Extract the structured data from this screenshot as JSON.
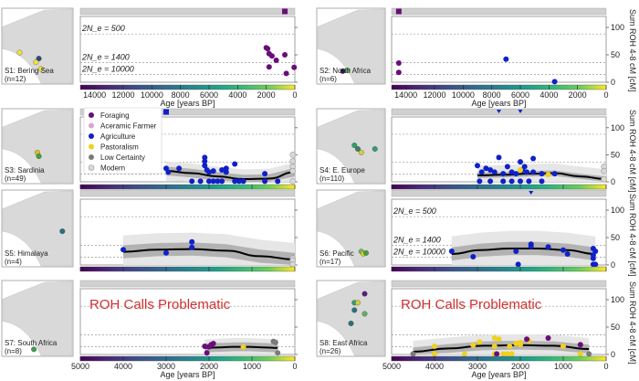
{
  "chart_data": {
    "type": "scatter",
    "shared": {
      "ylabel": "Sum ROH 4-8 cM [cM]",
      "ylim": [
        0,
        120
      ],
      "yticks": [
        0,
        50,
        100
      ],
      "colorbar_label": "Age [years BP]",
      "legend": [
        {
          "label": "Foraging",
          "color": "#6a0d7a"
        },
        {
          "label": "Aceramic Farmer",
          "color": "#d9a3d9"
        },
        {
          "label": "Agriculture",
          "color": "#1020c8"
        },
        {
          "label": "Pastoralism",
          "color": "#f0d020"
        },
        {
          "label": "Low Certainty",
          "color": "#7a7a7a"
        },
        {
          "label": "Modern",
          "color": "#d8d8d8"
        }
      ],
      "ne_lines": [
        {
          "label": "2N_e = 500",
          "y": 88
        },
        {
          "label": "2N_e = 1400",
          "y": 36
        },
        {
          "label": "2N_e = 10000",
          "y": 14
        }
      ],
      "problematic_text": "ROH Calls Problematic"
    },
    "panels": [
      {
        "id": "S1",
        "title": "S1: Bering Sea",
        "n": "(n=12)",
        "xlim": [
          15000,
          0
        ],
        "xticks": [
          14000,
          12000,
          10000,
          8000,
          6000,
          4000,
          2000,
          0
        ],
        "show_ne_labels": true,
        "show_xlabels": true,
        "points": [
          [
            2000,
            63,
            "Foraging"
          ],
          [
            1900,
            61,
            "Foraging"
          ],
          [
            1800,
            52,
            "Foraging"
          ],
          [
            1600,
            48,
            "Foraging"
          ],
          [
            1300,
            40,
            "Foraging"
          ],
          [
            700,
            50,
            "Foraging"
          ],
          [
            1800,
            28,
            "Foraging"
          ],
          [
            600,
            16,
            "Foraging"
          ],
          [
            50,
            27,
            "Foraging"
          ]
        ],
        "top_markers": [
          [
            700,
            "square",
            "#6a0d7a"
          ]
        ],
        "above_markers": [
          [
            11500,
            "triangle-up",
            "#6a0d7a"
          ]
        ],
        "map_points": [
          [
            "#f0e040",
            0.25,
            0.6
          ],
          [
            "#2a4a80",
            0.52,
            0.68
          ],
          [
            "#f0e040",
            0.48,
            0.73
          ],
          [
            "#f0e040",
            0.55,
            0.82
          ]
        ]
      },
      {
        "id": "S2",
        "title": "S2: North Africa",
        "n": "(n=6)",
        "xlim": [
          15000,
          0
        ],
        "xticks": [
          14000,
          12000,
          10000,
          8000,
          6000,
          4000,
          2000,
          0
        ],
        "show_ne_labels": false,
        "show_xlabels": true,
        "points": [
          [
            14500,
            35,
            "Foraging"
          ],
          [
            14500,
            18,
            "Foraging"
          ],
          [
            7000,
            42,
            "Agriculture"
          ],
          [
            3600,
            1,
            "Agriculture"
          ]
        ],
        "top_markers": [
          [
            14500,
            "square",
            "#6a0d7a"
          ]
        ],
        "above_markers": [],
        "map_points": [
          [
            "#3a1060",
            0.38,
            0.85
          ],
          [
            "#60c060",
            0.45,
            0.84
          ]
        ]
      },
      {
        "id": "S3",
        "title": "S3: Sardinia",
        "n": "(n=49)",
        "xlim": [
          5000,
          0
        ],
        "xticks": [
          5000,
          4000,
          3000,
          2000,
          1000,
          0
        ],
        "show_ne_labels": false,
        "show_xlabels": false,
        "show_legend": true,
        "fit": {
          "start": 3000,
          "end": 0,
          "values": [
            20,
            16,
            10,
            5,
            6,
            18
          ],
          "band_inner": 8,
          "band_outer": 18
        },
        "points": [
          [
            3000,
            25,
            "Agriculture"
          ],
          [
            2950,
            18,
            "Agriculture"
          ],
          [
            2700,
            25,
            "Agriculture"
          ],
          [
            2100,
            45,
            "Agriculture"
          ],
          [
            2100,
            38,
            "Agriculture"
          ],
          [
            2100,
            30,
            "Agriculture"
          ],
          [
            2050,
            22,
            "Agriculture"
          ],
          [
            2000,
            18,
            "Agriculture"
          ],
          [
            1900,
            20,
            "Agriculture"
          ],
          [
            1700,
            22,
            "Agriculture"
          ],
          [
            1600,
            18,
            "Agriculture"
          ],
          [
            1600,
            25,
            "Agriculture"
          ],
          [
            1400,
            33,
            "Agriculture"
          ],
          [
            2400,
            1,
            "Agriculture"
          ],
          [
            2200,
            1,
            "Agriculture"
          ],
          [
            2000,
            1,
            "Agriculture"
          ],
          [
            1900,
            1,
            "Agriculture"
          ],
          [
            1800,
            1,
            "Agriculture"
          ],
          [
            1700,
            1,
            "Agriculture"
          ],
          [
            1400,
            1,
            "Agriculture"
          ],
          [
            1300,
            1,
            "Agriculture"
          ],
          [
            1200,
            1,
            "Agriculture"
          ],
          [
            700,
            15,
            "Agriculture"
          ],
          [
            700,
            1,
            "Agriculture"
          ],
          [
            400,
            1,
            "Agriculture"
          ],
          [
            50,
            50,
            "Modern"
          ],
          [
            50,
            38,
            "Modern"
          ],
          [
            50,
            28,
            "Modern"
          ],
          [
            50,
            20,
            "Modern"
          ],
          [
            50,
            1,
            "Modern"
          ]
        ],
        "top_markers": [
          [
            3000,
            "square",
            "#1020c8"
          ]
        ],
        "above_markers": [],
        "map_points": [
          [
            "#e0c020",
            0.5,
            0.6
          ],
          [
            "#40a040",
            0.52,
            0.65
          ]
        ]
      },
      {
        "id": "S4",
        "title": "S4: E. Europe",
        "n": "(n=110)",
        "xlim": [
          5000,
          0
        ],
        "xticks": [
          5000,
          4000,
          3000,
          2000,
          1000,
          0
        ],
        "show_ne_labels": false,
        "show_xlabels": false,
        "fit": {
          "start": 3000,
          "end": 0,
          "values": [
            12,
            13,
            15,
            16,
            10,
            5
          ],
          "band_inner": 5,
          "band_outer": 18
        },
        "points": [
          [
            3000,
            30,
            "Agriculture"
          ],
          [
            2900,
            18,
            "Agriculture"
          ],
          [
            2800,
            25,
            "Agriculture"
          ],
          [
            2700,
            22,
            "Agriculture"
          ],
          [
            2600,
            18,
            "Agriculture"
          ],
          [
            2500,
            45,
            "Agriculture"
          ],
          [
            2400,
            15,
            "Agriculture"
          ],
          [
            2300,
            28,
            "Agriculture"
          ],
          [
            2200,
            18,
            "Agriculture"
          ],
          [
            2100,
            15,
            "Agriculture"
          ],
          [
            2000,
            37,
            "Agriculture"
          ],
          [
            1900,
            28,
            "Agriculture"
          ],
          [
            1950,
            22,
            "Agriculture"
          ],
          [
            1850,
            18,
            "Agriculture"
          ],
          [
            1700,
            43,
            "Agriculture"
          ],
          [
            1700,
            18,
            "Agriculture"
          ],
          [
            1500,
            15,
            "Agriculture"
          ],
          [
            1200,
            15,
            "Agriculture"
          ],
          [
            2950,
            1,
            "Agriculture"
          ],
          [
            2700,
            1,
            "Agriculture"
          ],
          [
            2400,
            1,
            "Agriculture"
          ],
          [
            2200,
            1,
            "Agriculture"
          ],
          [
            2000,
            1,
            "Agriculture"
          ],
          [
            1800,
            1,
            "Agriculture"
          ],
          [
            1500,
            1,
            "Agriculture"
          ],
          [
            2000,
            22,
            "Pastoralism"
          ],
          [
            1350,
            13,
            "Pastoralism"
          ],
          [
            50,
            28,
            "Modern"
          ],
          [
            50,
            20,
            "Modern"
          ],
          [
            50,
            5,
            "Modern"
          ]
        ],
        "top_markers": [],
        "above_markers": [
          [
            2500,
            "triangle-down",
            "#1020c8"
          ],
          [
            2000,
            "triangle-down",
            "#1020c8"
          ]
        ],
        "map_points": [
          [
            "#30a070",
            0.55,
            0.5
          ],
          [
            "#408060",
            0.6,
            0.55
          ],
          [
            "#d0d040",
            0.65,
            0.6
          ],
          [
            "#30a070",
            0.85,
            0.55
          ]
        ]
      },
      {
        "id": "S5",
        "title": "S5: Himalaya",
        "n": "(n=4)",
        "xlim": [
          5000,
          0
        ],
        "xticks": [
          5000,
          4000,
          3000,
          2000,
          1000,
          0
        ],
        "show_ne_labels": false,
        "show_xlabels": false,
        "fit": {
          "start": 4000,
          "end": 0,
          "values": [
            24,
            28,
            29,
            26,
            16,
            10
          ],
          "band_inner": 12,
          "band_outer": 30
        },
        "points": [
          [
            4000,
            28,
            "Agriculture"
          ],
          [
            3000,
            22,
            "Agriculture"
          ],
          [
            2400,
            42,
            "Agriculture"
          ],
          [
            2400,
            32,
            "Agriculture"
          ],
          [
            50,
            12,
            "Modern"
          ],
          [
            50,
            8,
            "Modern"
          ],
          [
            50,
            1,
            "Modern"
          ]
        ],
        "top_markers": [],
        "above_markers": [],
        "map_points": [
          [
            "#2a7080",
            0.85,
            0.55
          ]
        ]
      },
      {
        "id": "S6",
        "title": "S6: Pacific",
        "n": "(n=17)",
        "xlim": [
          5000,
          0
        ],
        "xticks": [
          5000,
          4000,
          3000,
          2000,
          1000,
          0
        ],
        "show_ne_labels": true,
        "show_xlabels": false,
        "fit": {
          "start": 3600,
          "end": 250,
          "values": [
            20,
            27,
            30,
            30,
            27,
            20
          ],
          "band_inner": 12,
          "band_outer": 32
        },
        "points": [
          [
            3600,
            25,
            "Agriculture"
          ],
          [
            3100,
            15,
            "Agriculture"
          ],
          [
            2100,
            25,
            "Agriculture"
          ],
          [
            1750,
            38,
            "Agriculture"
          ],
          [
            1750,
            34,
            "Agriculture"
          ],
          [
            1350,
            33,
            "Agriculture"
          ],
          [
            1000,
            27,
            "Agriculture"
          ],
          [
            900,
            20,
            "Agriculture"
          ],
          [
            300,
            30,
            "Agriculture"
          ],
          [
            250,
            25,
            "Agriculture"
          ],
          [
            300,
            18,
            "Agriculture"
          ],
          [
            300,
            12,
            "Agriculture"
          ],
          [
            2050,
            1,
            "Agriculture"
          ],
          [
            300,
            1,
            "Agriculture"
          ],
          [
            250,
            1,
            "Agriculture"
          ]
        ],
        "top_markers": [],
        "above_markers": [
          [
            1750,
            "triangle-down",
            "#1020c8"
          ]
        ],
        "map_points": [
          [
            "#60c060",
            0.65,
            0.82
          ],
          [
            "#e0d020",
            0.68,
            0.85
          ],
          [
            "#40a040",
            0.72,
            0.84
          ]
        ]
      },
      {
        "id": "S7",
        "title": "S7: South Africa",
        "n": "(n=8)",
        "xlim": [
          5000,
          0
        ],
        "xticks": [
          5000,
          4000,
          3000,
          2000,
          1000,
          0
        ],
        "show_ne_labels": false,
        "show_xlabels": true,
        "problematic": true,
        "fit": {
          "start": 2100,
          "end": 400,
          "values": [
            12,
            13,
            14,
            14,
            13,
            12
          ],
          "band_inner": 8,
          "band_outer": 16
        },
        "points": [
          [
            2100,
            15,
            "Foraging"
          ],
          [
            2000,
            14,
            "Foraging"
          ],
          [
            1950,
            18,
            "Foraging"
          ],
          [
            1900,
            20,
            "Foraging"
          ],
          [
            2050,
            3,
            "Foraging"
          ],
          [
            1200,
            14,
            "Pastoralism"
          ],
          [
            500,
            24,
            "Low Certainty"
          ],
          [
            450,
            22,
            "Low Certainty"
          ],
          [
            400,
            3,
            "Low Certainty"
          ]
        ],
        "top_markers": [],
        "above_markers": [],
        "map_points": [
          [
            "#40a050",
            0.45,
            0.93
          ]
        ]
      },
      {
        "id": "S8",
        "title": "S8: East Africa",
        "n": "(n=26)",
        "xlim": [
          5000,
          0
        ],
        "xticks": [
          5000,
          4000,
          3000,
          2000,
          1000,
          0
        ],
        "show_ne_labels": false,
        "show_xlabels": true,
        "problematic": true,
        "fit": {
          "start": 4500,
          "end": 400,
          "values": [
            5,
            11,
            16,
            17,
            16,
            10
          ],
          "band_inner": 8,
          "band_outer": 20
        },
        "points": [
          [
            4500,
            1,
            "Low Certainty"
          ],
          [
            4000,
            15,
            "Pastoralism"
          ],
          [
            4000,
            1,
            "Pastoralism"
          ],
          [
            3300,
            1,
            "Pastoralism"
          ],
          [
            3100,
            17,
            "Pastoralism"
          ],
          [
            2950,
            23,
            "Pastoralism"
          ],
          [
            2600,
            30,
            "Pastoralism"
          ],
          [
            2500,
            28,
            "Pastoralism"
          ],
          [
            2600,
            15,
            "Pastoralism"
          ],
          [
            2600,
            1,
            "Pastoralism"
          ],
          [
            2400,
            1,
            "Pastoralism"
          ],
          [
            2300,
            1,
            "Pastoralism"
          ],
          [
            2200,
            1,
            "Pastoralism"
          ],
          [
            2250,
            15,
            "Pastoralism"
          ],
          [
            2100,
            20,
            "Pastoralism"
          ],
          [
            2000,
            22,
            "Pastoralism"
          ],
          [
            2000,
            18,
            "Pastoralism"
          ],
          [
            1800,
            25,
            "Pastoralism"
          ],
          [
            1850,
            28,
            "Foraging"
          ],
          [
            2550,
            1,
            "Foraging"
          ],
          [
            1350,
            30,
            "Foraging"
          ],
          [
            1000,
            15,
            "Pastoralism"
          ],
          [
            600,
            18,
            "Foraging"
          ],
          [
            600,
            1,
            "Pastoralism"
          ],
          [
            400,
            1,
            "Low Certainty"
          ]
        ],
        "top_markers": [],
        "above_markers": [],
        "map_points": [
          [
            "#5a1a80",
            0.7,
            0.18
          ],
          [
            "#30a070",
            0.55,
            0.3
          ],
          [
            "#d0d040",
            0.6,
            0.3
          ],
          [
            "#2a7080",
            0.55,
            0.4
          ],
          [
            "#60b060",
            0.7,
            0.45
          ],
          [
            "#2a7080",
            0.5,
            0.58
          ]
        ]
      }
    ]
  }
}
